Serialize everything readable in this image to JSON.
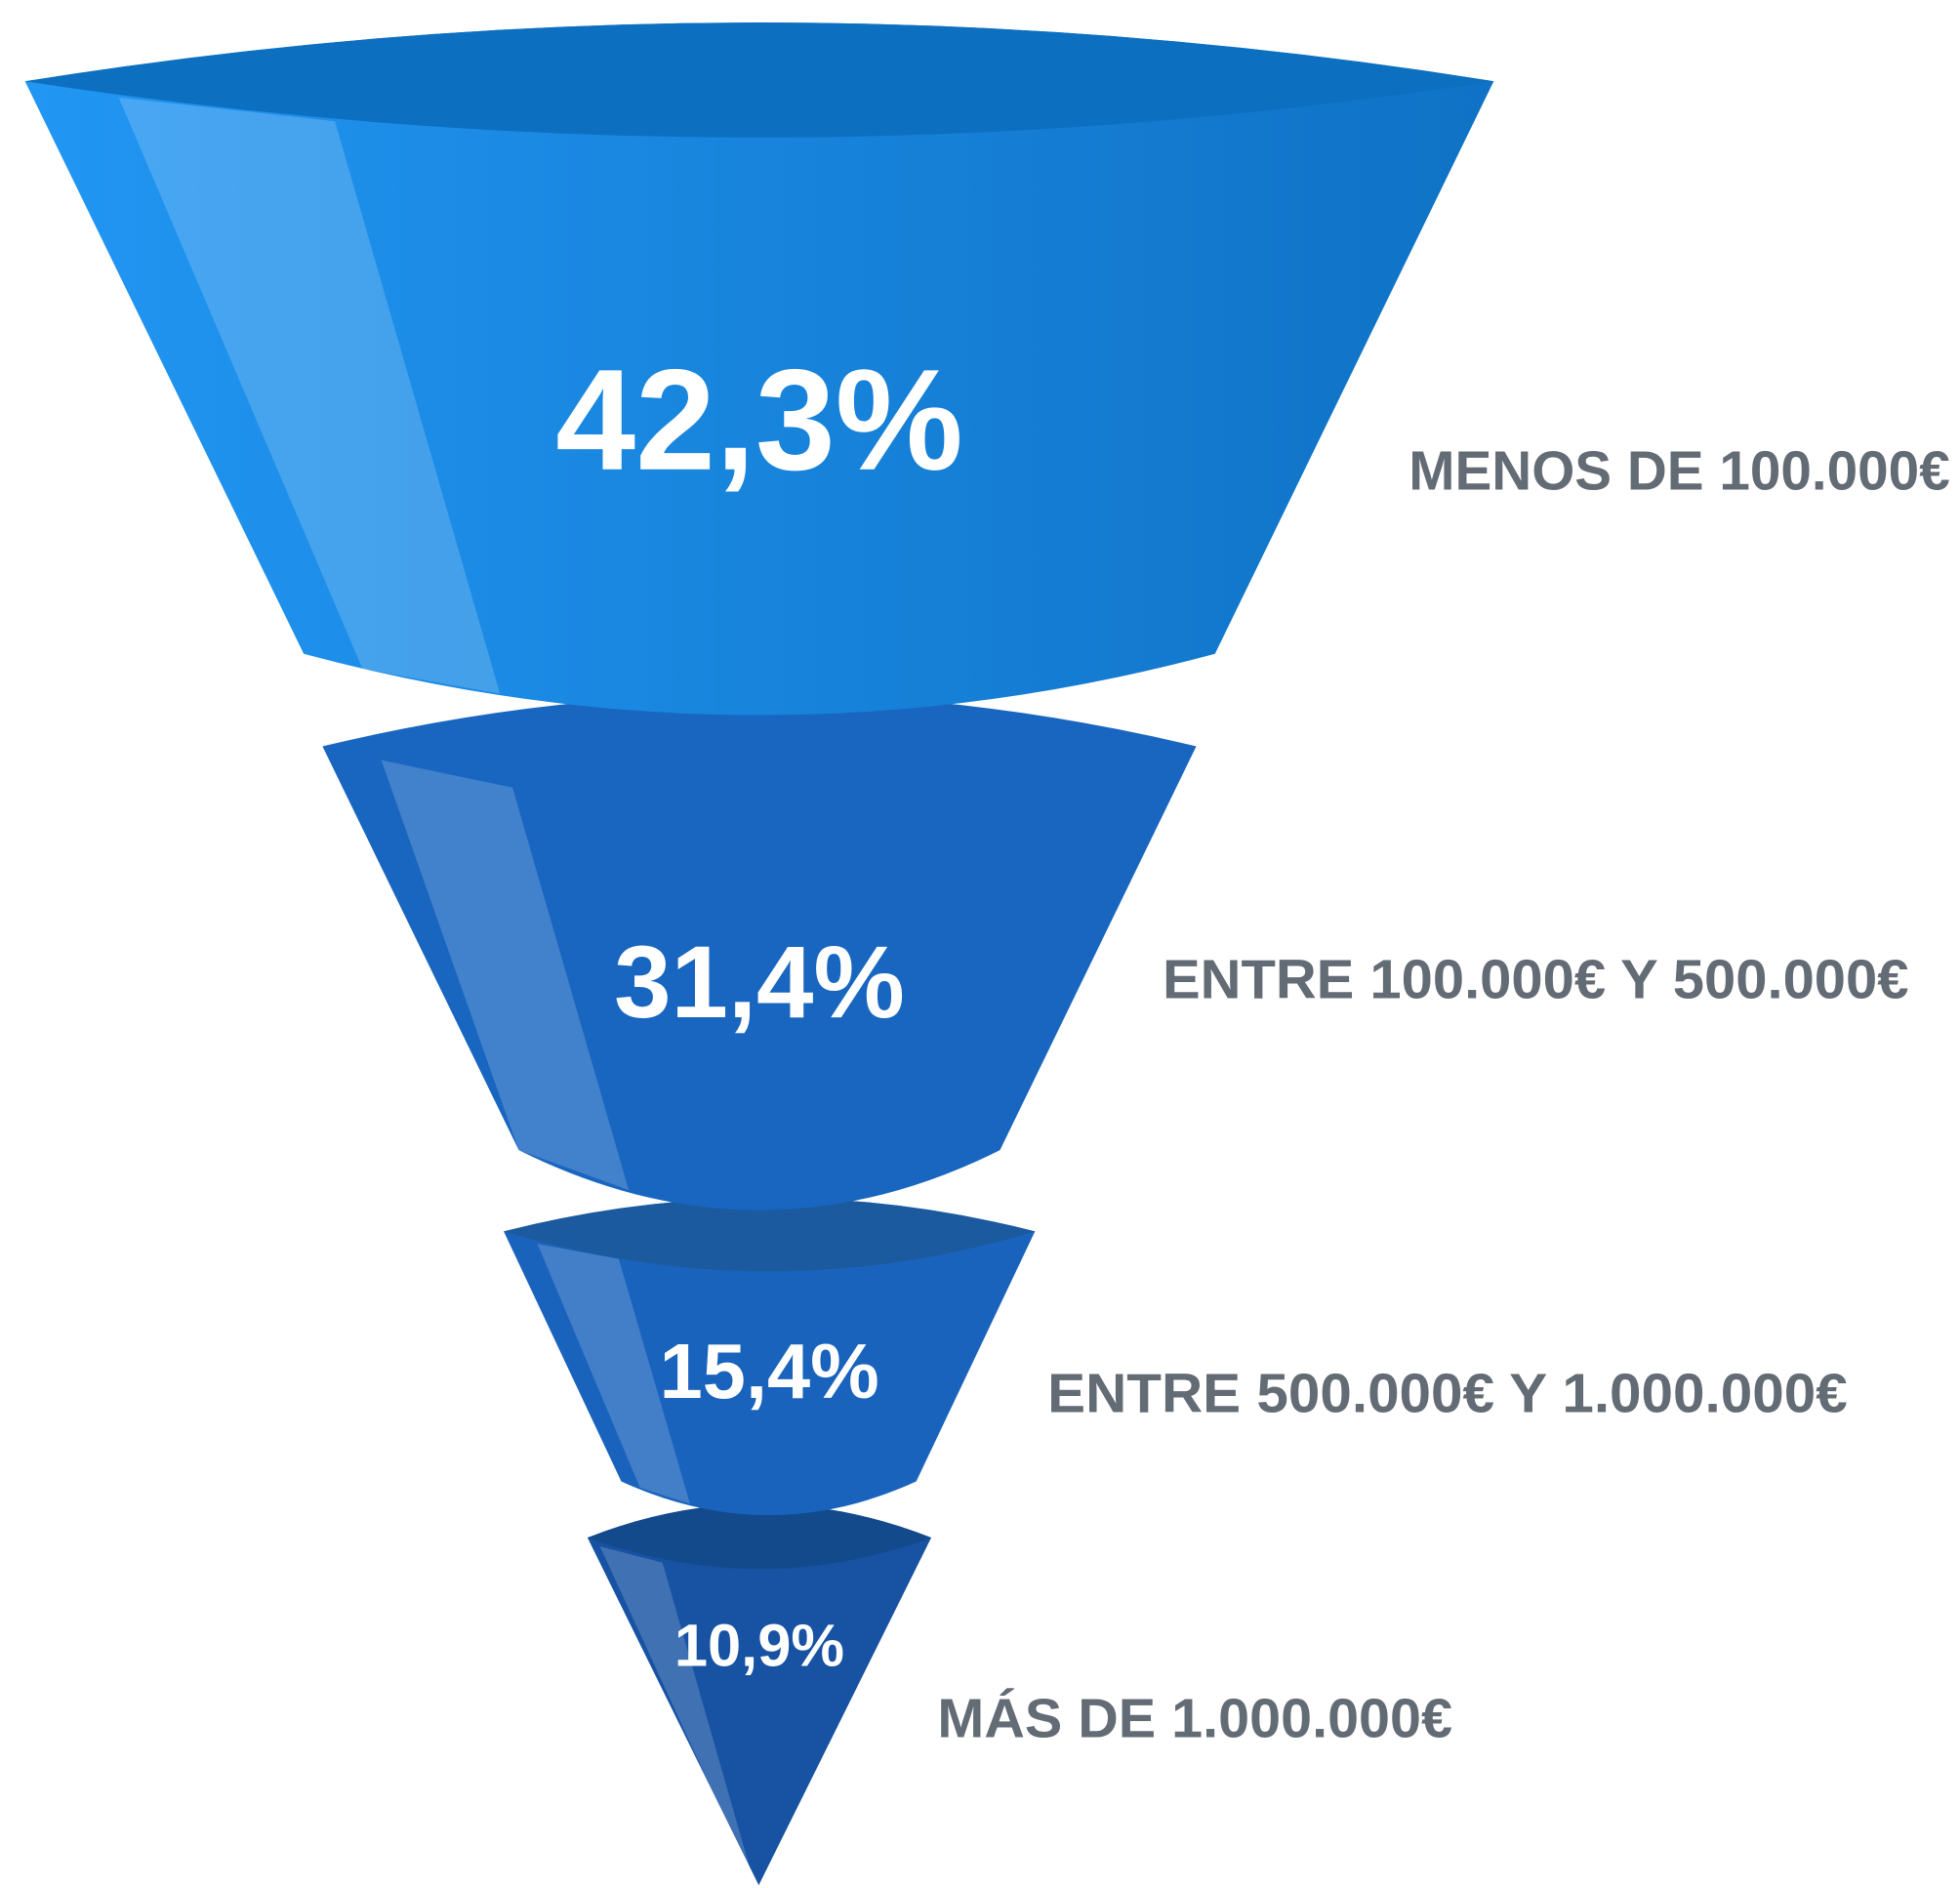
{
  "chart_data": {
    "type": "funnel",
    "categories": [
      "MENOS DE 100.000€",
      "ENTRE 100.000€ Y 500.000€",
      "ENTRE 500.000€ Y 1.000.000€",
      "MÁS DE 1.000.000€"
    ],
    "values": [
      42.3,
      31.4,
      15.4,
      10.9
    ],
    "value_labels": [
      "42,3%",
      "31,4%",
      "15,4%",
      "10,9%"
    ],
    "colors": [
      "#1a86e0",
      "#1966c0",
      "#1a63bd",
      "#1752a3"
    ],
    "label_color": "#636b75"
  }
}
